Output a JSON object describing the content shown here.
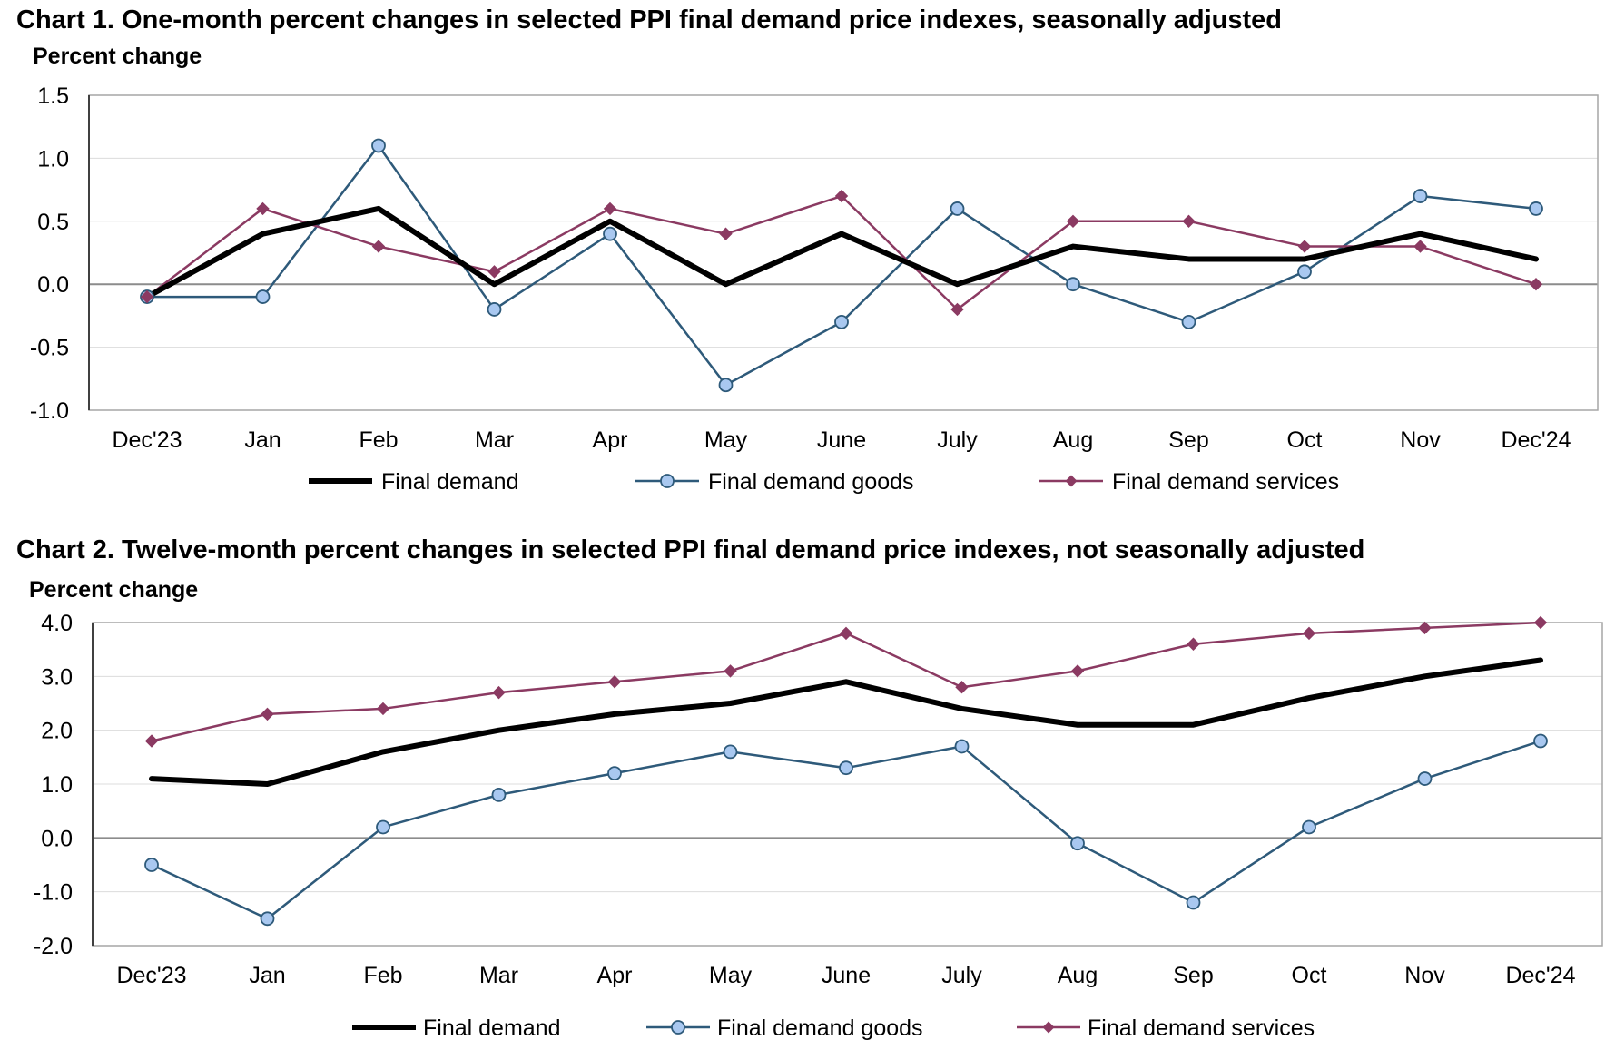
{
  "chart_data": [
    {
      "type": "line",
      "title": "Chart 1. One-month percent changes in selected PPI final demand price indexes, seasonally adjusted",
      "ylabel": "Percent change",
      "xlabel": "",
      "categories": [
        "Dec'23",
        "Jan",
        "Feb",
        "Mar",
        "Apr",
        "May",
        "June",
        "July",
        "Aug",
        "Sep",
        "Oct",
        "Nov",
        "Dec'24"
      ],
      "ylim": [
        -1.0,
        1.5
      ],
      "yticks": [
        "1.5",
        "1.0",
        "0.5",
        "0.0",
        "-0.5",
        "-1.0"
      ],
      "grid": true,
      "legend_position": "bottom",
      "series": [
        {
          "name": "Final demand",
          "color": "#000000",
          "marker": "none",
          "values": [
            -0.1,
            0.4,
            0.6,
            0.0,
            0.5,
            0.0,
            0.4,
            0.0,
            0.3,
            0.2,
            0.2,
            0.4,
            0.2
          ]
        },
        {
          "name": "Final demand goods",
          "color": "#2e5a7a",
          "marker": "circle",
          "values": [
            -0.1,
            -0.1,
            1.1,
            -0.2,
            0.4,
            -0.8,
            -0.3,
            0.6,
            0.0,
            -0.3,
            0.1,
            0.7,
            0.6
          ]
        },
        {
          "name": "Final demand services",
          "color": "#8b3a62",
          "marker": "diamond",
          "values": [
            -0.1,
            0.6,
            0.3,
            0.1,
            0.6,
            0.4,
            0.7,
            -0.2,
            0.5,
            0.5,
            0.3,
            0.3,
            0.0
          ]
        }
      ]
    },
    {
      "type": "line",
      "title": "Chart 2. Twelve-month percent changes in selected PPI final demand price indexes, not seasonally adjusted",
      "ylabel": "Percent change",
      "xlabel": "",
      "categories": [
        "Dec'23",
        "Jan",
        "Feb",
        "Mar",
        "Apr",
        "May",
        "June",
        "July",
        "Aug",
        "Sep",
        "Oct",
        "Nov",
        "Dec'24"
      ],
      "ylim": [
        -2.0,
        4.0
      ],
      "yticks": [
        "4.0",
        "3.0",
        "2.0",
        "1.0",
        "0.0",
        "-1.0",
        "-2.0"
      ],
      "grid": true,
      "legend_position": "bottom",
      "series": [
        {
          "name": "Final demand",
          "color": "#000000",
          "marker": "none",
          "values": [
            1.1,
            1.0,
            1.6,
            2.0,
            2.3,
            2.5,
            2.9,
            2.4,
            2.1,
            2.1,
            2.6,
            3.0,
            3.3
          ]
        },
        {
          "name": "Final demand goods",
          "color": "#2e5a7a",
          "marker": "circle",
          "values": [
            -0.5,
            -1.5,
            0.2,
            0.8,
            1.2,
            1.6,
            1.3,
            1.7,
            -0.1,
            -1.2,
            0.2,
            1.1,
            1.8
          ]
        },
        {
          "name": "Final demand services",
          "color": "#8b3a62",
          "marker": "diamond",
          "values": [
            1.8,
            2.3,
            2.4,
            2.7,
            2.9,
            3.1,
            3.8,
            2.8,
            3.1,
            3.6,
            3.8,
            3.9,
            4.0
          ]
        }
      ]
    }
  ]
}
